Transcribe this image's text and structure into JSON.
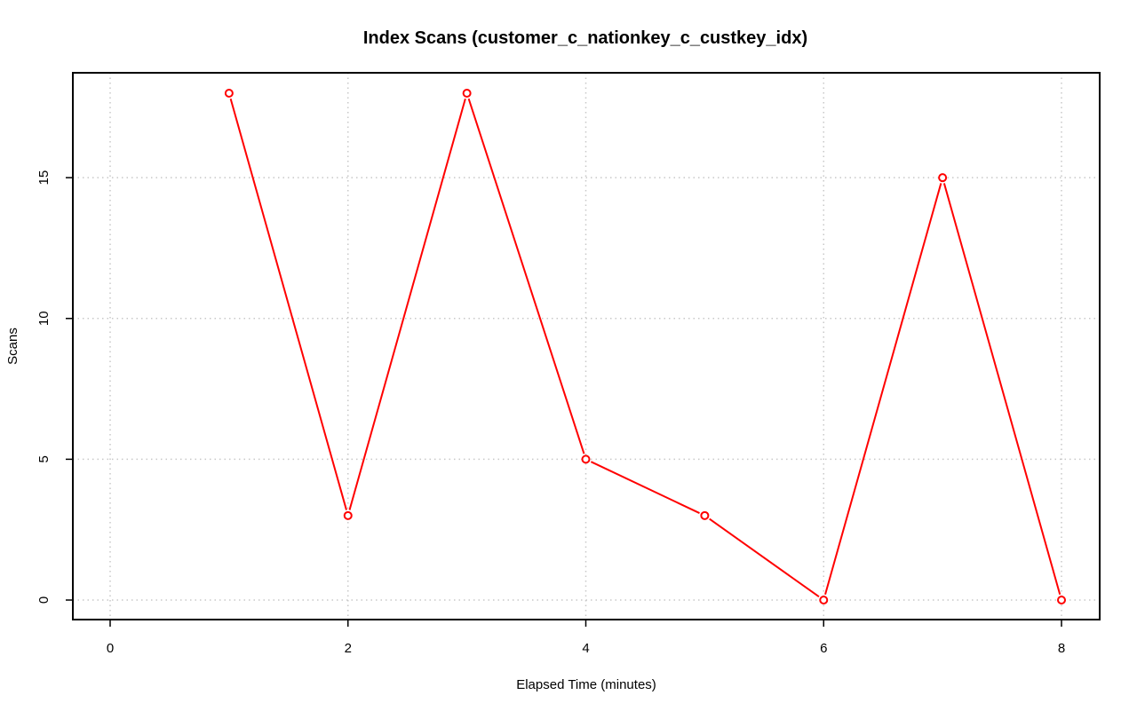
{
  "chart_data": {
    "type": "line",
    "title": "Index Scans (customer_c_nationkey_c_custkey_idx)",
    "xlabel": "Elapsed Time (minutes)",
    "ylabel": "Scans",
    "xlim": [
      0,
      8
    ],
    "ylim": [
      0,
      18
    ],
    "xticks": [
      0,
      2,
      4,
      6,
      8
    ],
    "yticks": [
      0,
      5,
      10,
      15
    ],
    "grid": true,
    "series": [
      {
        "color": "#ff0000",
        "x": [
          1,
          2,
          3,
          4,
          5,
          6,
          7,
          8
        ],
        "y": [
          18,
          3,
          18,
          5,
          3,
          0,
          15,
          0
        ]
      }
    ]
  }
}
